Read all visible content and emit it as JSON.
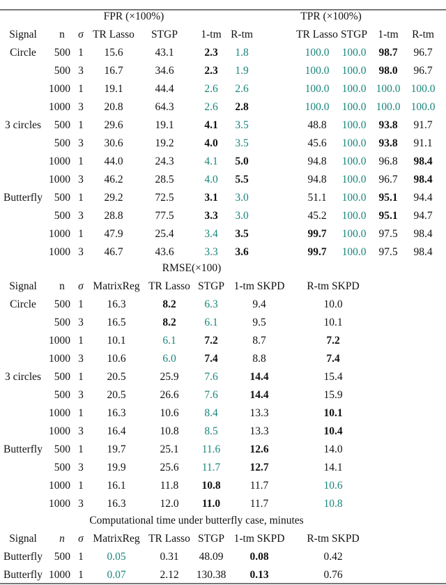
{
  "colors": {
    "best": "#17857b",
    "second": "#111111"
  },
  "fpr_tpr": {
    "fpr_title": "FPR (×100%)",
    "tpr_title": "TPR (×100%)",
    "headers": [
      "Signal",
      "n",
      "σ",
      "TR Lasso",
      "STGP",
      "1-tm",
      "R-tm",
      "TR Lasso",
      "STGP",
      "1-tm",
      "R-tm"
    ],
    "rows": [
      {
        "signal": "Circle",
        "n": "500",
        "sigma": "1",
        "cells": [
          {
            "v": "15.6",
            "s": ""
          },
          {
            "v": "43.1",
            "s": ""
          },
          {
            "v": "2.3",
            "s": "bold"
          },
          {
            "v": "1.8",
            "s": "green"
          },
          {
            "v": "100.0",
            "s": "green"
          },
          {
            "v": "100.0",
            "s": "green"
          },
          {
            "v": "98.7",
            "s": "bold"
          },
          {
            "v": "96.7",
            "s": ""
          }
        ]
      },
      {
        "signal": "",
        "n": "500",
        "sigma": "3",
        "cells": [
          {
            "v": "16.7",
            "s": ""
          },
          {
            "v": "34.6",
            "s": ""
          },
          {
            "v": "2.3",
            "s": "bold"
          },
          {
            "v": "1.9",
            "s": "green"
          },
          {
            "v": "100.0",
            "s": "green"
          },
          {
            "v": "100.0",
            "s": "green"
          },
          {
            "v": "98.0",
            "s": "bold"
          },
          {
            "v": "96.7",
            "s": ""
          }
        ]
      },
      {
        "signal": "",
        "n": "1000",
        "sigma": "1",
        "cells": [
          {
            "v": "19.1",
            "s": ""
          },
          {
            "v": "44.4",
            "s": ""
          },
          {
            "v": "2.6",
            "s": "green"
          },
          {
            "v": "2.6",
            "s": "green"
          },
          {
            "v": "100.0",
            "s": "green"
          },
          {
            "v": "100.0",
            "s": "green"
          },
          {
            "v": "100.0",
            "s": "green"
          },
          {
            "v": "100.0",
            "s": "green"
          }
        ]
      },
      {
        "signal": "",
        "n": "1000",
        "sigma": "3",
        "cells": [
          {
            "v": "20.8",
            "s": ""
          },
          {
            "v": "64.3",
            "s": ""
          },
          {
            "v": "2.6",
            "s": "green"
          },
          {
            "v": "2.8",
            "s": "bold"
          },
          {
            "v": "100.0",
            "s": "green"
          },
          {
            "v": "100.0",
            "s": "green"
          },
          {
            "v": "100.0",
            "s": "green"
          },
          {
            "v": "100.0",
            "s": "green"
          }
        ]
      },
      {
        "signal": "3 circles",
        "n": "500",
        "sigma": "1",
        "cells": [
          {
            "v": "29.6",
            "s": ""
          },
          {
            "v": "19.1",
            "s": ""
          },
          {
            "v": "4.1",
            "s": "bold"
          },
          {
            "v": "3.5",
            "s": "green"
          },
          {
            "v": "48.8",
            "s": ""
          },
          {
            "v": "100.0",
            "s": "green"
          },
          {
            "v": "93.8",
            "s": "bold"
          },
          {
            "v": "91.7",
            "s": ""
          }
        ]
      },
      {
        "signal": "",
        "n": "500",
        "sigma": "3",
        "cells": [
          {
            "v": "30.6",
            "s": ""
          },
          {
            "v": "19.2",
            "s": ""
          },
          {
            "v": "4.0",
            "s": "bold"
          },
          {
            "v": "3.5",
            "s": "green"
          },
          {
            "v": "45.6",
            "s": ""
          },
          {
            "v": "100.0",
            "s": "green"
          },
          {
            "v": "93.8",
            "s": "bold"
          },
          {
            "v": "91.1",
            "s": ""
          }
        ]
      },
      {
        "signal": "",
        "n": "1000",
        "sigma": "1",
        "cells": [
          {
            "v": "44.0",
            "s": ""
          },
          {
            "v": "24.3",
            "s": ""
          },
          {
            "v": "4.1",
            "s": "green"
          },
          {
            "v": "5.0",
            "s": "bold"
          },
          {
            "v": "94.8",
            "s": ""
          },
          {
            "v": "100.0",
            "s": "green"
          },
          {
            "v": "96.8",
            "s": ""
          },
          {
            "v": "98.4",
            "s": "bold"
          }
        ]
      },
      {
        "signal": "",
        "n": "1000",
        "sigma": "3",
        "cells": [
          {
            "v": "46.2",
            "s": ""
          },
          {
            "v": "28.5",
            "s": ""
          },
          {
            "v": "4.0",
            "s": "green"
          },
          {
            "v": "5.5",
            "s": "bold"
          },
          {
            "v": "94.8",
            "s": ""
          },
          {
            "v": "100.0",
            "s": "green"
          },
          {
            "v": "96.7",
            "s": ""
          },
          {
            "v": "98.4",
            "s": "bold"
          }
        ]
      },
      {
        "signal": "Butterfly",
        "n": "500",
        "sigma": "1",
        "cells": [
          {
            "v": "29.2",
            "s": ""
          },
          {
            "v": "72.5",
            "s": ""
          },
          {
            "v": "3.1",
            "s": "bold"
          },
          {
            "v": "3.0",
            "s": "green"
          },
          {
            "v": "51.1",
            "s": ""
          },
          {
            "v": "100.0",
            "s": "green"
          },
          {
            "v": "95.1",
            "s": "bold"
          },
          {
            "v": "94.4",
            "s": ""
          }
        ]
      },
      {
        "signal": "",
        "n": "500",
        "sigma": "3",
        "cells": [
          {
            "v": "28.8",
            "s": ""
          },
          {
            "v": "77.5",
            "s": ""
          },
          {
            "v": "3.3",
            "s": "bold"
          },
          {
            "v": "3.0",
            "s": "green"
          },
          {
            "v": "45.2",
            "s": ""
          },
          {
            "v": "100.0",
            "s": "green"
          },
          {
            "v": "95.1",
            "s": "bold"
          },
          {
            "v": "94.7",
            "s": ""
          }
        ]
      },
      {
        "signal": "",
        "n": "1000",
        "sigma": "1",
        "cells": [
          {
            "v": "47.9",
            "s": ""
          },
          {
            "v": "25.4",
            "s": ""
          },
          {
            "v": "3.4",
            "s": "green"
          },
          {
            "v": "3.5",
            "s": "bold"
          },
          {
            "v": "99.7",
            "s": "bold"
          },
          {
            "v": "100.0",
            "s": "green"
          },
          {
            "v": "97.5",
            "s": ""
          },
          {
            "v": "98.4",
            "s": ""
          }
        ]
      },
      {
        "signal": "",
        "n": "1000",
        "sigma": "3",
        "cells": [
          {
            "v": "46.7",
            "s": ""
          },
          {
            "v": "43.6",
            "s": ""
          },
          {
            "v": "3.3",
            "s": "green"
          },
          {
            "v": "3.6",
            "s": "bold"
          },
          {
            "v": "99.7",
            "s": "bold"
          },
          {
            "v": "100.0",
            "s": "green"
          },
          {
            "v": "97.5",
            "s": ""
          },
          {
            "v": "98.4",
            "s": ""
          }
        ]
      }
    ]
  },
  "rmse": {
    "title": "RMSE(×100)",
    "headers": [
      "Signal",
      "n",
      "σ",
      "MatrixReg",
      "TR Lasso",
      "STGP",
      "1-tm SKPD",
      "R-tm SKPD"
    ],
    "rows": [
      {
        "signal": "Circle",
        "n": "500",
        "sigma": "1",
        "cells": [
          {
            "v": "16.3",
            "s": ""
          },
          {
            "v": "8.2",
            "s": "bold"
          },
          {
            "v": "6.3",
            "s": "green"
          },
          {
            "v": "9.4",
            "s": ""
          },
          {
            "v": "10.0",
            "s": ""
          }
        ]
      },
      {
        "signal": "",
        "n": "500",
        "sigma": "3",
        "cells": [
          {
            "v": "16.5",
            "s": ""
          },
          {
            "v": "8.2",
            "s": "bold"
          },
          {
            "v": "6.1",
            "s": "green"
          },
          {
            "v": "9.5",
            "s": ""
          },
          {
            "v": "10.1",
            "s": ""
          }
        ]
      },
      {
        "signal": "",
        "n": "1000",
        "sigma": "1",
        "cells": [
          {
            "v": "10.1",
            "s": ""
          },
          {
            "v": "6.1",
            "s": "green"
          },
          {
            "v": "7.2",
            "s": "bold"
          },
          {
            "v": "8.7",
            "s": ""
          },
          {
            "v": "7.2",
            "s": "bold"
          }
        ]
      },
      {
        "signal": "",
        "n": "1000",
        "sigma": "3",
        "cells": [
          {
            "v": "10.6",
            "s": ""
          },
          {
            "v": "6.0",
            "s": "green"
          },
          {
            "v": "7.4",
            "s": "bold"
          },
          {
            "v": "8.8",
            "s": ""
          },
          {
            "v": "7.4",
            "s": "bold"
          }
        ]
      },
      {
        "signal": "3 circles",
        "n": "500",
        "sigma": "1",
        "cells": [
          {
            "v": "20.5",
            "s": ""
          },
          {
            "v": "25.9",
            "s": ""
          },
          {
            "v": "7.6",
            "s": "green"
          },
          {
            "v": "14.4",
            "s": "bold"
          },
          {
            "v": "15.4",
            "s": ""
          }
        ]
      },
      {
        "signal": "",
        "n": "500",
        "sigma": "3",
        "cells": [
          {
            "v": "20.5",
            "s": ""
          },
          {
            "v": "26.6",
            "s": ""
          },
          {
            "v": "7.6",
            "s": "green"
          },
          {
            "v": "14.4",
            "s": "bold"
          },
          {
            "v": "15.9",
            "s": ""
          }
        ]
      },
      {
        "signal": "",
        "n": "1000",
        "sigma": "1",
        "cells": [
          {
            "v": "16.3",
            "s": ""
          },
          {
            "v": "10.6",
            "s": ""
          },
          {
            "v": "8.4",
            "s": "green"
          },
          {
            "v": "13.3",
            "s": ""
          },
          {
            "v": "10.1",
            "s": "bold"
          }
        ]
      },
      {
        "signal": "",
        "n": "1000",
        "sigma": "3",
        "cells": [
          {
            "v": "16.4",
            "s": ""
          },
          {
            "v": "10.8",
            "s": ""
          },
          {
            "v": "8.5",
            "s": "green"
          },
          {
            "v": "13.3",
            "s": ""
          },
          {
            "v": "10.4",
            "s": "bold"
          }
        ]
      },
      {
        "signal": "Butterfly",
        "n": "500",
        "sigma": "1",
        "cells": [
          {
            "v": "19.7",
            "s": ""
          },
          {
            "v": "25.1",
            "s": ""
          },
          {
            "v": "11.6",
            "s": "green"
          },
          {
            "v": "12.6",
            "s": "bold"
          },
          {
            "v": "14.0",
            "s": ""
          }
        ]
      },
      {
        "signal": "",
        "n": "500",
        "sigma": "3",
        "cells": [
          {
            "v": "19.9",
            "s": ""
          },
          {
            "v": "25.6",
            "s": ""
          },
          {
            "v": "11.7",
            "s": "green"
          },
          {
            "v": "12.7",
            "s": "bold"
          },
          {
            "v": "14.1",
            "s": ""
          }
        ]
      },
      {
        "signal": "",
        "n": "1000",
        "sigma": "1",
        "cells": [
          {
            "v": "16.1",
            "s": ""
          },
          {
            "v": "11.8",
            "s": ""
          },
          {
            "v": "10.8",
            "s": "bold"
          },
          {
            "v": "11.7",
            "s": ""
          },
          {
            "v": "10.6",
            "s": "green"
          }
        ]
      },
      {
        "signal": "",
        "n": "1000",
        "sigma": "3",
        "cells": [
          {
            "v": "16.3",
            "s": ""
          },
          {
            "v": "12.0",
            "s": ""
          },
          {
            "v": "11.0",
            "s": "bold"
          },
          {
            "v": "11.7",
            "s": ""
          },
          {
            "v": "10.8",
            "s": "green"
          }
        ]
      }
    ]
  },
  "time": {
    "title": "Computational time under butterfly case, minutes",
    "headers": [
      "Signal",
      "n",
      "σ",
      "MatrixReg",
      "TR Lasso",
      "STGP",
      "1-tm SKPD",
      "R-tm SKPD"
    ],
    "rows": [
      {
        "signal": "Butterfly",
        "n": "500",
        "sigma": "1",
        "cells": [
          {
            "v": "0.05",
            "s": "green"
          },
          {
            "v": "0.31",
            "s": ""
          },
          {
            "v": "48.09",
            "s": ""
          },
          {
            "v": "0.08",
            "s": "bold"
          },
          {
            "v": "0.42",
            "s": ""
          }
        ]
      },
      {
        "signal": "Butterfly",
        "n": "1000",
        "sigma": "1",
        "cells": [
          {
            "v": "0.07",
            "s": "green"
          },
          {
            "v": "2.12",
            "s": ""
          },
          {
            "v": "130.38",
            "s": ""
          },
          {
            "v": "0.13",
            "s": "bold"
          },
          {
            "v": "0.76",
            "s": ""
          }
        ]
      }
    ]
  }
}
